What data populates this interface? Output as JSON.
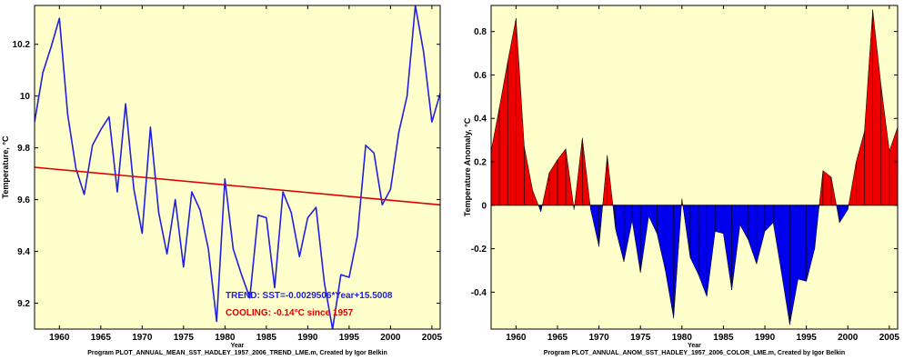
{
  "chart_data": [
    {
      "type": "line",
      "xlabel": "Year",
      "ylabel": "Temperature, °C",
      "caption": "Program PLOT_ANNUAL_MEAN_SST_HADLEY_1957_2006_TREND_LME.m, Created by Igor Belkin",
      "xlim": [
        1957,
        2006
      ],
      "ylim": [
        9.1,
        10.35
      ],
      "xticks": [
        1960,
        1965,
        1970,
        1975,
        1980,
        1985,
        1990,
        1995,
        2000,
        2005
      ],
      "yticks": [
        9.2,
        9.4,
        9.6,
        9.8,
        10,
        10.2
      ],
      "ytick_labels": [
        "9.2",
        "9.4",
        "9.6",
        "9.8",
        "10",
        "10.2"
      ],
      "grid": false,
      "background": "#ffffcc",
      "series": [
        {
          "color": "#2020e0",
          "x": [
            1957,
            1958,
            1959,
            1960,
            1961,
            1962,
            1963,
            1964,
            1965,
            1966,
            1967,
            1968,
            1969,
            1970,
            1971,
            1972,
            1973,
            1974,
            1975,
            1976,
            1977,
            1978,
            1979,
            1980,
            1981,
            1982,
            1983,
            1984,
            1985,
            1986,
            1987,
            1988,
            1989,
            1990,
            1991,
            1992,
            1993,
            1994,
            1995,
            1996,
            1997,
            1998,
            1999,
            2000,
            2001,
            2002,
            2003,
            2004,
            2005,
            2006
          ],
          "y": [
            9.9,
            10.09,
            10.19,
            10.3,
            9.93,
            9.72,
            9.62,
            9.81,
            9.87,
            9.92,
            9.63,
            9.97,
            9.64,
            9.47,
            9.88,
            9.55,
            9.39,
            9.6,
            9.34,
            9.63,
            9.56,
            9.41,
            9.13,
            9.68,
            9.41,
            9.31,
            9.22,
            9.54,
            9.53,
            9.26,
            9.63,
            9.55,
            9.38,
            9.53,
            9.57,
            9.28,
            9.1,
            9.31,
            9.3,
            9.46,
            9.81,
            9.78,
            9.58,
            9.64,
            9.86,
            10.0,
            10.35,
            10.17,
            9.9,
            10.01
          ]
        },
        {
          "color": "#dd0000",
          "x": [
            1957,
            2006
          ],
          "y": [
            9.725,
            9.58
          ]
        }
      ],
      "annotations": [
        {
          "text": "TREND:  SST=-0.0029506*Year+15.5008",
          "color": "#2020e0"
        },
        {
          "text": "COOLING: -0.14°C since 1957",
          "color": "#dd0000"
        }
      ]
    },
    {
      "type": "area",
      "xlabel": "Year",
      "ylabel": "Temperature Anomaly, °C",
      "caption": "Program PLOT_ANNUAL_ANOM_SST_HADLEY_1957_2006_COLOR_LME.m, Created by Igor Belkin",
      "xlim": [
        1957,
        2006
      ],
      "ylim": [
        -0.57,
        0.92
      ],
      "xticks": [
        1960,
        1965,
        1970,
        1975,
        1980,
        1985,
        1990,
        1995,
        2000,
        2005
      ],
      "yticks": [
        -0.4,
        -0.2,
        0,
        0.2,
        0.4,
        0.6,
        0.8
      ],
      "ytick_labels": [
        "-0.4",
        "-0.2",
        "0",
        "0.2",
        "0.4",
        "0.6",
        "0.8"
      ],
      "grid": false,
      "background": "#ffffcc",
      "positive_color": "#ee0000",
      "negative_color": "#0000ee",
      "x": [
        1957,
        1958,
        1959,
        1960,
        1961,
        1962,
        1963,
        1964,
        1965,
        1966,
        1967,
        1968,
        1969,
        1970,
        1971,
        1972,
        1973,
        1974,
        1975,
        1976,
        1977,
        1978,
        1979,
        1980,
        1981,
        1982,
        1983,
        1984,
        1985,
        1986,
        1987,
        1988,
        1989,
        1990,
        1991,
        1992,
        1993,
        1994,
        1995,
        1996,
        1997,
        1998,
        1999,
        2000,
        2001,
        2002,
        2003,
        2004,
        2005,
        2006
      ],
      "y": [
        0.25,
        0.45,
        0.66,
        0.86,
        0.27,
        0.07,
        -0.03,
        0.15,
        0.21,
        0.26,
        -0.02,
        0.31,
        -0.02,
        -0.19,
        0.23,
        -0.11,
        -0.26,
        -0.07,
        -0.31,
        -0.05,
        -0.13,
        -0.3,
        -0.52,
        0.03,
        -0.24,
        -0.32,
        -0.42,
        -0.12,
        -0.13,
        -0.39,
        -0.09,
        -0.16,
        -0.27,
        -0.12,
        -0.08,
        -0.31,
        -0.55,
        -0.34,
        -0.35,
        -0.2,
        0.16,
        0.13,
        -0.08,
        -0.02,
        0.2,
        0.34,
        0.9,
        0.55,
        0.25,
        0.36
      ]
    }
  ]
}
